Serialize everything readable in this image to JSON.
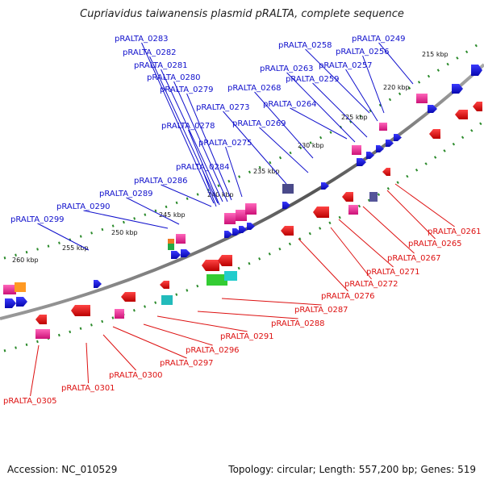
{
  "title": "Cupriavidus taiwanensis plasmid pRALTA, complete sequence",
  "footer": {
    "accession": "Accession: NC_010529",
    "summary": "Topology: circular; Length: 557,200 bp; Genes: 519"
  },
  "ticks": [
    "215 kbp",
    "220 kbp",
    "225 kbp",
    "230 kbp",
    "235 kbp",
    "240 kbp",
    "245 kbp",
    "250 kbp",
    "255 kbp",
    "260 kbp"
  ],
  "forward_labels": [
    "pRALTA_0283",
    "pRALTA_0282",
    "pRALTA_0281",
    "pRALTA_0280",
    "pRALTA_0279",
    "pRALTA_0278",
    "pRALTA_0275",
    "pRALTA_0284",
    "pRALTA_0286",
    "pRALTA_0289",
    "pRALTA_0290",
    "pRALTA_0299",
    "pRALTA_0273",
    "pRALTA_0269",
    "pRALTA_0268",
    "pRALTA_0264",
    "pRALTA_0263",
    "pRALTA_0259",
    "pRALTA_0258",
    "pRALTA_0257",
    "pRALTA_0256",
    "pRALTA_0249"
  ],
  "reverse_labels": [
    "pRALTA_0261",
    "pRALTA_0265",
    "pRALTA_0267",
    "pRALTA_0271",
    "pRALTA_0272",
    "pRALTA_0276",
    "pRALTA_0287",
    "pRALTA_0288",
    "pRALTA_0291",
    "pRALTA_0296",
    "pRALTA_0297",
    "pRALTA_0300",
    "pRALTA_0301",
    "pRALTA_0305"
  ],
  "colors": {
    "forward_label": "#1010cc",
    "reverse_label": "#dd1111",
    "forward_gene": "#1111dd",
    "reverse_gene": "#ee1111",
    "rna_gene": "#ee2288",
    "backbone": "#777777",
    "tick_dots": "#2a8a2a"
  }
}
